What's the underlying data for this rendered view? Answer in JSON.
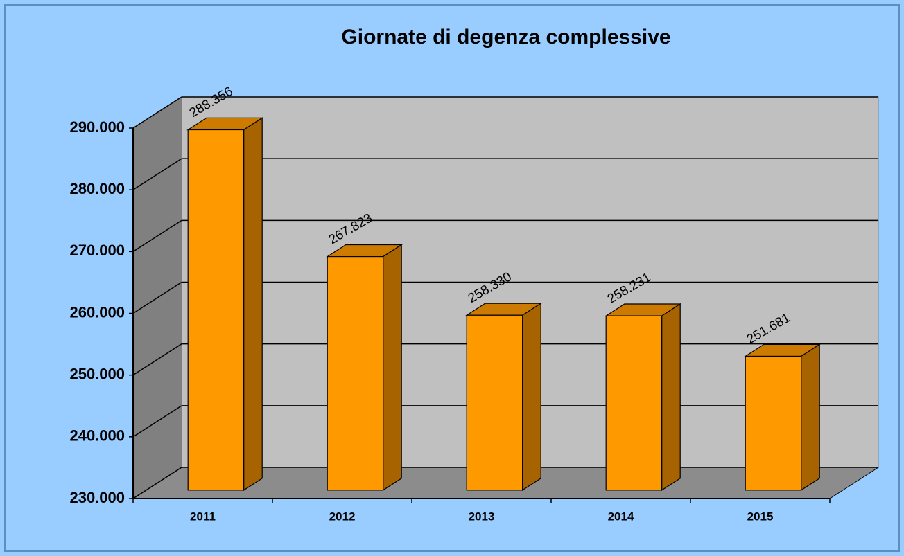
{
  "chart_data": {
    "type": "bar3d",
    "title": "Giornate di degenza complessive",
    "categories": [
      "2011",
      "2012",
      "2013",
      "2014",
      "2015"
    ],
    "values": [
      288356,
      267823,
      258330,
      258231,
      251681
    ],
    "value_labels": [
      "288.356",
      "267.823",
      "258.330",
      "258.231",
      "251.681"
    ],
    "color": "#ff9900",
    "ylim": [
      230000,
      290000
    ],
    "yticks": [
      {
        "value": 230000,
        "label": "230.000"
      },
      {
        "value": 240000,
        "label": "240.000"
      },
      {
        "value": 250000,
        "label": "250.000"
      },
      {
        "value": 260000,
        "label": "260.000"
      },
      {
        "value": 270000,
        "label": "270.000"
      },
      {
        "value": 280000,
        "label": "280.000"
      },
      {
        "value": 290000,
        "label": "290.000"
      }
    ],
    "grid": true
  }
}
